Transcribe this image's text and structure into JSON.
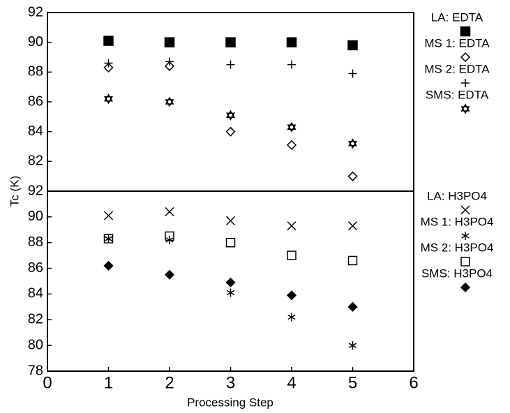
{
  "chart_data": [
    {
      "type": "scatter",
      "ylabel": "Tc (K)",
      "xlim": [
        0,
        6
      ],
      "ylim": [
        80,
        92
      ],
      "yticks": [
        82,
        84,
        86,
        88,
        90,
        92
      ],
      "x": [
        1,
        2,
        3,
        4,
        5
      ],
      "series": [
        {
          "name": "LA: EDTA",
          "color": "#000000",
          "marker": "square-filled",
          "values": [
            90.1,
            90.0,
            90.0,
            90.0,
            89.8
          ]
        },
        {
          "name": "MS 1: EDTA",
          "color": "#000000",
          "marker": "diamond-open",
          "values": [
            88.3,
            88.4,
            84.0,
            83.1,
            81.0
          ]
        },
        {
          "name": "MS 2: EDTA",
          "color": "#000000",
          "marker": "plus",
          "values": [
            88.6,
            88.7,
            88.5,
            88.5,
            87.9
          ]
        },
        {
          "name": "SMS: EDTA",
          "color": "#000000",
          "marker": "star",
          "values": [
            86.2,
            86.0,
            85.1,
            84.3,
            83.2
          ]
        }
      ]
    },
    {
      "type": "scatter",
      "xlabel": "Processing Step",
      "xlim": [
        0,
        6
      ],
      "xticks": [
        0,
        1,
        2,
        3,
        4,
        5,
        6
      ],
      "ylim": [
        78,
        92
      ],
      "yticks": [
        78,
        80,
        82,
        84,
        86,
        88,
        90,
        92
      ],
      "x": [
        1,
        2,
        3,
        4,
        5
      ],
      "series": [
        {
          "name": "LA: H3PO4",
          "color": "#000000",
          "marker": "cross",
          "values": [
            90.1,
            90.4,
            89.7,
            89.3,
            89.3
          ]
        },
        {
          "name": "MS 1: H3PO4",
          "color": "#000000",
          "marker": "asterisk",
          "values": [
            88.3,
            88.2,
            84.1,
            82.2,
            80.0
          ]
        },
        {
          "name": "MS 2: H3PO4",
          "color": "#000000",
          "marker": "square-open",
          "values": [
            88.3,
            88.5,
            88.0,
            87.0,
            86.6
          ]
        },
        {
          "name": "SMS: H3PO4",
          "color": "#000000",
          "marker": "diamond-filled",
          "values": [
            86.2,
            85.5,
            84.9,
            83.9,
            83.0
          ]
        }
      ]
    }
  ]
}
